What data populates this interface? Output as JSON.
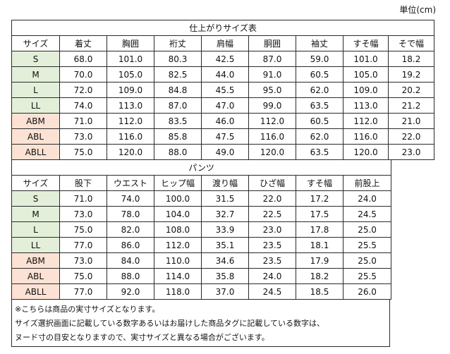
{
  "unit_label": "単位(cm)",
  "tops": {
    "title": "仕上がりサイズ表",
    "columns": [
      "サイズ",
      "着丈",
      "胸囲",
      "裄丈",
      "肩幅",
      "胴囲",
      "袖丈",
      "すそ幅",
      "そで幅"
    ],
    "rows": [
      {
        "size": "S",
        "group": "std",
        "values": [
          "68.0",
          "101.0",
          "80.3",
          "42.5",
          "87.0",
          "59.0",
          "101.0",
          "18.2"
        ]
      },
      {
        "size": "M",
        "group": "std",
        "values": [
          "70.0",
          "105.0",
          "82.5",
          "44.0",
          "91.0",
          "60.5",
          "105.0",
          "19.2"
        ]
      },
      {
        "size": "L",
        "group": "std",
        "values": [
          "72.0",
          "109.0",
          "84.8",
          "45.5",
          "95.0",
          "62.0",
          "109.0",
          "20.2"
        ]
      },
      {
        "size": "LL",
        "group": "std",
        "values": [
          "74.0",
          "113.0",
          "87.0",
          "47.0",
          "99.0",
          "63.5",
          "113.0",
          "21.2"
        ]
      },
      {
        "size": "ABM",
        "group": "ab",
        "values": [
          "71.0",
          "112.0",
          "83.5",
          "46.0",
          "112.0",
          "60.5",
          "112.0",
          "21.0"
        ]
      },
      {
        "size": "ABL",
        "group": "ab",
        "values": [
          "73.0",
          "116.0",
          "85.8",
          "47.5",
          "116.0",
          "62.0",
          "116.0",
          "22.0"
        ]
      },
      {
        "size": "ABLL",
        "group": "ab",
        "values": [
          "75.0",
          "120.0",
          "88.0",
          "49.0",
          "120.0",
          "63.5",
          "120.0",
          "23.0"
        ]
      }
    ]
  },
  "pants": {
    "title": "パンツ",
    "columns": [
      "サイズ",
      "股下",
      "ウエスト",
      "ヒップ幅",
      "渡り幅",
      "ひざ幅",
      "すそ幅",
      "前股上"
    ],
    "rows": [
      {
        "size": "S",
        "group": "std",
        "values": [
          "71.0",
          "74.0",
          "100.0",
          "31.5",
          "22.0",
          "17.2",
          "24.0"
        ]
      },
      {
        "size": "M",
        "group": "std",
        "values": [
          "73.0",
          "78.0",
          "104.0",
          "32.7",
          "22.5",
          "17.5",
          "24.5"
        ]
      },
      {
        "size": "L",
        "group": "std",
        "values": [
          "75.0",
          "82.0",
          "108.0",
          "33.9",
          "23.0",
          "17.8",
          "25.0"
        ]
      },
      {
        "size": "LL",
        "group": "std",
        "values": [
          "77.0",
          "86.0",
          "112.0",
          "35.1",
          "23.5",
          "18.1",
          "25.5"
        ]
      },
      {
        "size": "ABM",
        "group": "ab",
        "values": [
          "73.0",
          "84.0",
          "110.0",
          "34.6",
          "23.5",
          "17.9",
          "25.0"
        ]
      },
      {
        "size": "ABL",
        "group": "ab",
        "values": [
          "75.0",
          "88.0",
          "114.0",
          "35.8",
          "24.0",
          "18.2",
          "25.5"
        ]
      },
      {
        "size": "ABLL",
        "group": "ab",
        "values": [
          "77.0",
          "92.0",
          "118.0",
          "37.0",
          "24.5",
          "18.5",
          "26.0"
        ]
      }
    ]
  },
  "notes": [
    "※こちらは商品の実寸サイズとなります。",
    "サイズ選択画面に記載している数字あるいはお届けした商品タグに記載している数字は、",
    "ヌード寸の目安となりますので、実寸サイズと異なる場合がございます。"
  ],
  "colors": {
    "std_size_bg": "#e4efd9",
    "ab_size_bg": "#fbe2d5",
    "border": "#2a2a2a"
  }
}
